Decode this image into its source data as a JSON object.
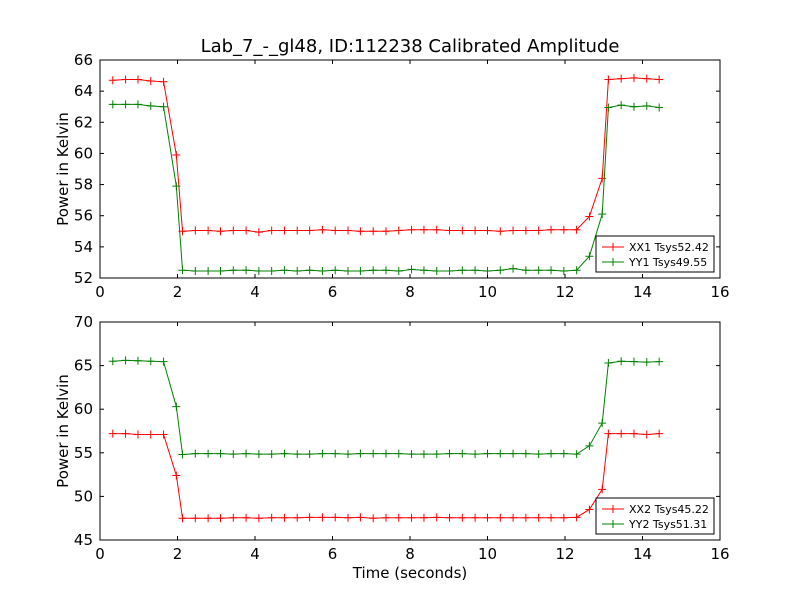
{
  "figure": {
    "title": "Lab_7_-_gl48, ID:112238 Calibrated Amplitude"
  },
  "chart_data": [
    {
      "type": "line",
      "title": "Lab_7_-_gl48, ID:112238 Calibrated Amplitude",
      "xlabel": "",
      "ylabel": "Power in Kelvin",
      "xlim": [
        0,
        16
      ],
      "ylim": [
        52,
        66
      ],
      "xticks": [
        0,
        2,
        4,
        6,
        8,
        10,
        12,
        14,
        16
      ],
      "yticks": [
        52,
        54,
        56,
        58,
        60,
        62,
        64,
        66
      ],
      "grid": false,
      "legend": "bottom-right",
      "x": [
        0.33,
        0.66,
        0.98,
        1.31,
        1.64,
        1.97,
        2.13,
        2.46,
        2.79,
        3.11,
        3.44,
        3.77,
        4.1,
        4.43,
        4.76,
        5.09,
        5.41,
        5.74,
        6.07,
        6.4,
        6.72,
        7.05,
        7.38,
        7.71,
        8.04,
        8.36,
        8.69,
        9.02,
        9.35,
        9.68,
        10.0,
        10.33,
        10.66,
        10.99,
        11.32,
        11.64,
        11.97,
        12.3,
        12.63,
        12.96,
        13.12,
        13.45,
        13.78,
        14.11,
        14.43
      ],
      "series": [
        {
          "name": "XX1 Tsys52.42",
          "color": "#ff0000",
          "values": [
            64.7,
            64.75,
            64.75,
            64.65,
            64.6,
            59.9,
            55.0,
            55.05,
            55.05,
            55.0,
            55.05,
            55.05,
            54.95,
            55.05,
            55.05,
            55.05,
            55.05,
            55.1,
            55.05,
            55.05,
            55.0,
            55.0,
            55.0,
            55.05,
            55.1,
            55.1,
            55.1,
            55.05,
            55.05,
            55.05,
            55.05,
            55.0,
            55.05,
            55.05,
            55.05,
            55.1,
            55.1,
            55.1,
            55.95,
            58.4,
            64.75,
            64.8,
            64.85,
            64.8,
            64.75
          ]
        },
        {
          "name": "YY1 Tsys49.55",
          "color": "#008000",
          "values": [
            63.15,
            63.15,
            63.15,
            63.05,
            63.0,
            57.9,
            52.5,
            52.45,
            52.45,
            52.45,
            52.5,
            52.5,
            52.45,
            52.45,
            52.5,
            52.45,
            52.5,
            52.45,
            52.5,
            52.45,
            52.45,
            52.5,
            52.5,
            52.45,
            52.55,
            52.5,
            52.45,
            52.45,
            52.5,
            52.5,
            52.45,
            52.5,
            52.6,
            52.5,
            52.5,
            52.5,
            52.45,
            52.5,
            53.4,
            56.1,
            62.95,
            63.1,
            63.0,
            63.05,
            62.95
          ]
        }
      ]
    },
    {
      "type": "line",
      "title": "",
      "xlabel": "Time (seconds)",
      "ylabel": "Power in Kelvin",
      "xlim": [
        0,
        16
      ],
      "ylim": [
        45,
        70
      ],
      "xticks": [
        0,
        2,
        4,
        6,
        8,
        10,
        12,
        14,
        16
      ],
      "yticks": [
        45,
        50,
        55,
        60,
        65,
        70
      ],
      "grid": false,
      "legend": "bottom-right",
      "x": [
        0.33,
        0.66,
        0.98,
        1.31,
        1.64,
        1.97,
        2.13,
        2.46,
        2.79,
        3.11,
        3.44,
        3.77,
        4.1,
        4.43,
        4.76,
        5.09,
        5.41,
        5.74,
        6.07,
        6.4,
        6.72,
        7.05,
        7.38,
        7.71,
        8.04,
        8.36,
        8.69,
        9.02,
        9.35,
        9.68,
        10.0,
        10.33,
        10.66,
        10.99,
        11.32,
        11.64,
        11.97,
        12.3,
        12.63,
        12.96,
        13.12,
        13.45,
        13.78,
        14.11,
        14.43
      ],
      "series": [
        {
          "name": "XX2 Tsys45.22",
          "color": "#ff0000",
          "values": [
            57.2,
            57.2,
            57.1,
            57.1,
            57.1,
            52.4,
            47.5,
            47.5,
            47.5,
            47.5,
            47.55,
            47.55,
            47.5,
            47.55,
            47.55,
            47.55,
            47.6,
            47.6,
            47.6,
            47.55,
            47.6,
            47.5,
            47.55,
            47.55,
            47.55,
            47.55,
            47.6,
            47.55,
            47.55,
            47.55,
            47.55,
            47.55,
            47.55,
            47.55,
            47.55,
            47.55,
            47.55,
            47.6,
            48.5,
            50.8,
            57.2,
            57.2,
            57.2,
            57.1,
            57.2
          ]
        },
        {
          "name": "YY2 Tsys51.31",
          "color": "#008000",
          "values": [
            65.5,
            65.6,
            65.55,
            65.5,
            65.45,
            60.3,
            54.8,
            54.9,
            54.9,
            54.9,
            54.85,
            54.9,
            54.85,
            54.85,
            54.9,
            54.85,
            54.85,
            54.9,
            54.9,
            54.85,
            54.9,
            54.9,
            54.9,
            54.9,
            54.85,
            54.85,
            54.85,
            54.9,
            54.9,
            54.85,
            54.9,
            54.9,
            54.9,
            54.9,
            54.85,
            54.9,
            54.9,
            54.85,
            55.8,
            58.4,
            65.3,
            65.5,
            65.45,
            65.4,
            65.45
          ]
        }
      ]
    }
  ]
}
